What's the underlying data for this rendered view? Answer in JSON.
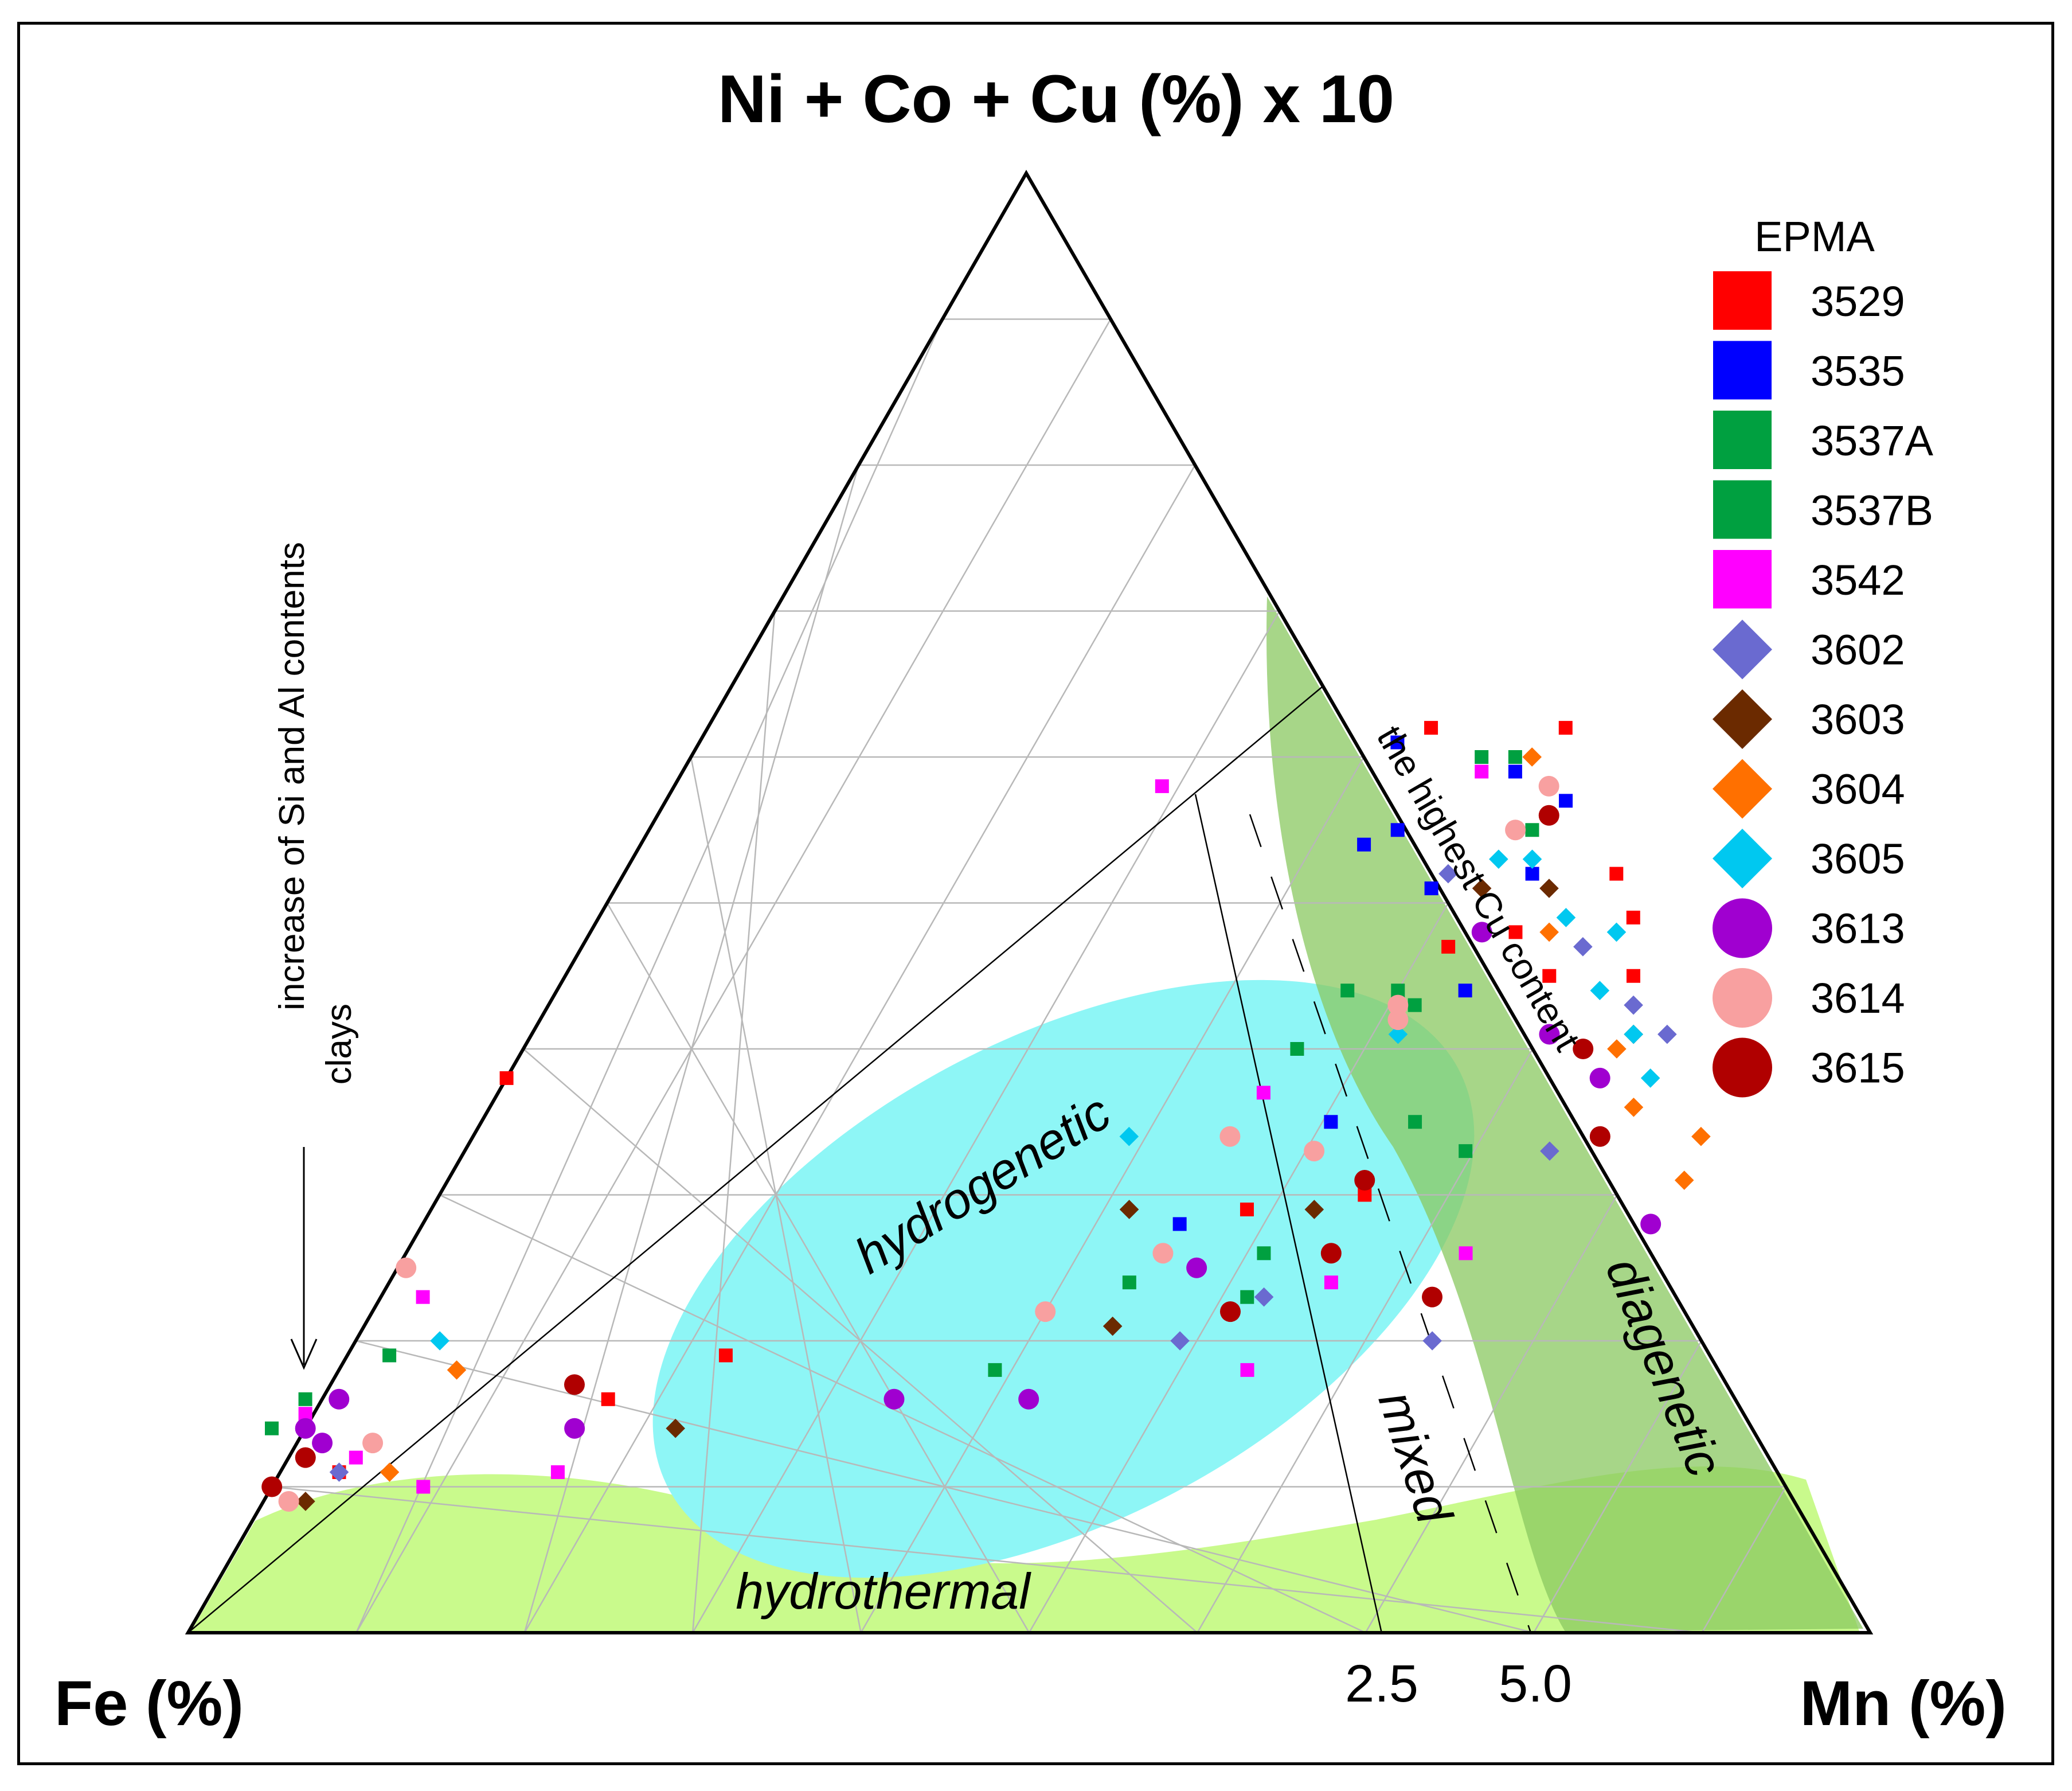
{
  "chart_data": {
    "type": "ternary-scatter",
    "title": "Ni + Co + Cu (%) x 10",
    "axes": {
      "top": "Ni + Co + Cu (%) x 10",
      "left": "Fe (%)",
      "right": "Mn (%)"
    },
    "base_ticks": [
      "2.5",
      "5.0"
    ],
    "annotations": {
      "clays_line1": "increase of Si and Al contents",
      "clays_line2": "clays",
      "cu_line": "the highest Cu content"
    },
    "regions": {
      "hydrogenetic": "hydrogenetic",
      "diagenetic": "diagenetic",
      "hydrothermal": "hydrothermal",
      "mixed": "mixed"
    },
    "legend_title": "EPMA",
    "series": [
      {
        "name": "3529",
        "marker": "square",
        "color": "#ff0000",
        "points": [
          [
            0.25,
            0.16
          ],
          [
            0.79,
            0.48
          ],
          [
            0.74,
            0.62
          ],
          [
            0.19,
            0.38
          ],
          [
            0.63,
            0.29
          ],
          [
            0.85,
            0.52
          ],
          [
            0.86,
            0.49
          ],
          [
            0.81,
            0.45
          ],
          [
            0.75,
            0.47
          ],
          [
            0.7,
            0.3
          ],
          [
            0.09,
            0.11
          ],
          [
            0.32,
            0.19
          ],
          [
            0.82,
            0.62
          ],
          [
            0.86,
            0.45
          ]
        ]
      },
      {
        "name": "3535",
        "marker": "square",
        "color": "#0000ff",
        "points": [
          [
            0.72,
            0.61
          ],
          [
            0.68,
            0.35
          ],
          [
            0.74,
            0.51
          ],
          [
            0.79,
            0.59
          ],
          [
            0.59,
            0.28
          ],
          [
            0.72,
            0.55
          ],
          [
            0.8,
            0.52
          ],
          [
            0.7,
            0.54
          ],
          [
            0.76,
            0.44
          ],
          [
            0.82,
            0.57
          ]
        ]
      },
      {
        "name": "3537A",
        "marker": "square",
        "color": "#00a040",
        "points": [
          [
            0.79,
            0.6
          ],
          [
            0.77,
            0.6
          ],
          [
            0.66,
            0.4
          ],
          [
            0.69,
            0.44
          ],
          [
            0.56,
            0.24
          ],
          [
            0.63,
            0.23
          ],
          [
            0.48,
            0.18
          ],
          [
            0.12,
            0.19
          ],
          [
            0.8,
            0.55
          ],
          [
            0.72,
            0.44
          ],
          [
            0.73,
            0.35
          ]
        ]
      },
      {
        "name": "3537B",
        "marker": "square",
        "color": "#00a040",
        "points": [
          [
            0.07,
            0.16
          ],
          [
            0.73,
            0.43
          ],
          [
            0.76,
            0.33
          ],
          [
            0.64,
            0.26
          ],
          [
            0.05,
            0.14
          ]
        ]
      },
      {
        "name": "3542",
        "marker": "square",
        "color": "#ff00ff",
        "points": [
          [
            0.58,
            0.58
          ],
          [
            0.77,
            0.59
          ],
          [
            0.64,
            0.37
          ],
          [
            0.58,
            0.26
          ],
          [
            0.68,
            0.24
          ],
          [
            0.63,
            0.18
          ],
          [
            0.76,
            0.26
          ],
          [
            0.14,
            0.23
          ],
          [
            0.1,
            0.12
          ],
          [
            0.07,
            0.15
          ],
          [
            0.22,
            0.11
          ],
          [
            0.14,
            0.1
          ]
        ]
      },
      {
        "name": "3602",
        "marker": "diamond",
        "color": "#6a6ad0",
        "points": [
          [
            0.75,
            0.52
          ],
          [
            0.86,
            0.43
          ],
          [
            0.81,
            0.33
          ],
          [
            0.64,
            0.23
          ],
          [
            0.74,
            0.2
          ],
          [
            0.59,
            0.2
          ],
          [
            0.09,
            0.11
          ],
          [
            0.83,
            0.47
          ],
          [
            0.88,
            0.41
          ]
        ]
      },
      {
        "name": "3603",
        "marker": "diamond",
        "color": "#6b2a00",
        "points": [
          [
            0.77,
            0.51
          ],
          [
            0.56,
            0.29
          ],
          [
            0.55,
            0.21
          ],
          [
            0.67,
            0.29
          ],
          [
            0.29,
            0.14
          ],
          [
            0.07,
            0.09
          ],
          [
            0.81,
            0.51
          ],
          [
            0.86,
            0.41
          ]
        ]
      },
      {
        "name": "3604",
        "marker": "diamond",
        "color": "#ff7000",
        "points": [
          [
            0.8,
            0.6
          ],
          [
            0.81,
            0.48
          ],
          [
            0.86,
            0.36
          ],
          [
            0.9,
            0.34
          ],
          [
            0.89,
            0.31
          ],
          [
            0.16,
            0.18
          ],
          [
            0.11,
            0.13
          ],
          [
            0.12,
            0.11
          ],
          [
            0.85,
            0.4
          ]
        ]
      },
      {
        "name": "3605",
        "marker": "diamond",
        "color": "#00c8f0",
        "points": [
          [
            0.78,
            0.53
          ],
          [
            0.8,
            0.53
          ],
          [
            0.82,
            0.49
          ],
          [
            0.85,
            0.48
          ],
          [
            0.72,
            0.41
          ],
          [
            0.86,
            0.41
          ],
          [
            0.56,
            0.34
          ],
          [
            0.15,
            0.2
          ],
          [
            0.84,
            0.44
          ],
          [
            0.87,
            0.38
          ]
        ]
      },
      {
        "name": "3613",
        "marker": "circle",
        "color": "#a000d0",
        "points": [
          [
            0.77,
            0.48
          ],
          [
            0.81,
            0.41
          ],
          [
            0.84,
            0.38
          ],
          [
            0.87,
            0.28
          ],
          [
            0.6,
            0.25
          ],
          [
            0.5,
            0.16
          ],
          [
            0.42,
            0.16
          ],
          [
            0.09,
            0.16
          ],
          [
            0.23,
            0.14
          ],
          [
            0.07,
            0.14
          ],
          [
            0.08,
            0.13
          ]
        ]
      },
      {
        "name": "3614",
        "marker": "circle",
        "color": "#f8a0a0",
        "points": [
          [
            0.81,
            0.58
          ],
          [
            0.79,
            0.55
          ],
          [
            0.72,
            0.43
          ],
          [
            0.72,
            0.42
          ],
          [
            0.62,
            0.34
          ],
          [
            0.67,
            0.33
          ],
          [
            0.58,
            0.26
          ],
          [
            0.51,
            0.22
          ],
          [
            0.13,
            0.25
          ],
          [
            0.11,
            0.13
          ],
          [
            0.06,
            0.09
          ]
        ]
      },
      {
        "name": "3615",
        "marker": "circle",
        "color": "#b00000",
        "points": [
          [
            0.81,
            0.56
          ],
          [
            0.84,
            0.34
          ],
          [
            0.7,
            0.31
          ],
          [
            0.68,
            0.26
          ],
          [
            0.62,
            0.22
          ],
          [
            0.74,
            0.23
          ],
          [
            0.23,
            0.17
          ],
          [
            0.07,
            0.12
          ],
          [
            0.05,
            0.1
          ],
          [
            0.83,
            0.4
          ]
        ]
      }
    ]
  }
}
